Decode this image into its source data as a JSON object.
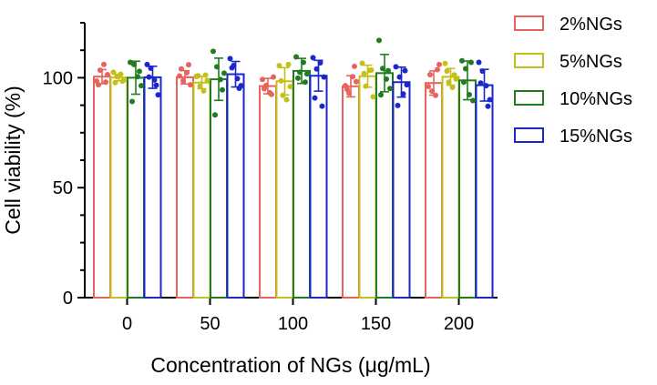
{
  "chart_data": {
    "type": "bar",
    "xlabel": "Concentration of NGs (μg/mL)",
    "ylabel": "Cell viability (%)",
    "categories": [
      "0",
      "50",
      "100",
      "150",
      "200"
    ],
    "ylim": [
      0,
      125
    ],
    "yticks": [
      0,
      50,
      100
    ],
    "grid": false,
    "legend_position": "top-right",
    "error_bars": true,
    "individual_points": true,
    "series": [
      {
        "name": "2%NGs",
        "color": "#e8625e",
        "values": [
          100.5,
          100.2,
          96.2,
          96.1,
          97.6
        ],
        "errors": [
          3.2,
          3.0,
          3.5,
          4.8,
          5.5
        ],
        "points": [
          [
            98.5,
            103.4,
            106.0,
            101.4,
            96.8,
            98.0
          ],
          [
            100.8,
            98.6,
            102.3,
            96.8,
            104.0,
            105.9
          ],
          [
            99.2,
            96.5,
            93.2,
            100.3,
            95.0,
            92.4
          ],
          [
            96.4,
            93.0,
            100.5,
            98.2,
            94.7,
            105.2
          ],
          [
            96.0,
            93.9,
            92.0,
            106.0,
            101.4,
            103.7
          ]
        ]
      },
      {
        "name": "5%NGs",
        "color": "#c4c01a",
        "values": [
          100.1,
          97.8,
          98.4,
          100.7,
          100.4
        ],
        "errors": [
          1.5,
          2.8,
          6.2,
          5.0,
          3.8
        ],
        "points": [
          [
            102.5,
            100.5,
            101.6,
            99.2,
            97.8,
            98.4
          ],
          [
            100.6,
            96.2,
            94.0,
            98.8,
            100.9,
            101.2
          ],
          [
            105.5,
            92.0,
            90.0,
            96.0,
            98.6,
            106.0
          ],
          [
            106.6,
            96.2,
            103.3,
            91.3,
            101.9,
            103.5
          ],
          [
            106.5,
            98.0,
            95.6,
            99.4,
            103.0,
            101.3
          ]
        ]
      },
      {
        "name": "10%NGs",
        "color": "#1f7d1f",
        "values": [
          100.0,
          99.3,
          103.1,
          102.1,
          98.8
        ],
        "errors": [
          7.5,
          9.6,
          5.7,
          8.5,
          8.8
        ],
        "points": [
          [
            107.0,
            106.0,
            100.5,
            96.4,
            89.2,
            102.9
          ],
          [
            112.0,
            105.0,
            99.2,
            102.1,
            83.1,
            94.5
          ],
          [
            109.5,
            102.5,
            107.0,
            101.7,
            99.8,
            98.0
          ],
          [
            117.0,
            104.2,
            99.4,
            95.1,
            92.2,
            103.2
          ],
          [
            107.7,
            104.1,
            92.3,
            89.6,
            98.0,
            107.0
          ]
        ]
      },
      {
        "name": "15%NGs",
        "color": "#1b27c9",
        "values": [
          100.2,
          101.6,
          100.9,
          98.0,
          96.6
        ],
        "errors": [
          5.0,
          5.8,
          7.0,
          6.8,
          7.2
        ],
        "points": [
          [
            106.0,
            104.3,
            99.0,
            92.2,
            100.3,
            96.6
          ],
          [
            108.7,
            105.6,
            99.6,
            96.4,
            104.5,
            95.2
          ],
          [
            109.1,
            104.0,
            106.8,
            100.3,
            90.8,
            87.1
          ],
          [
            105.0,
            100.3,
            92.6,
            96.8,
            87.4,
            103.2
          ],
          [
            107.0,
            103.0,
            96.4,
            90.0,
            97.6,
            87.0
          ]
        ]
      }
    ]
  }
}
